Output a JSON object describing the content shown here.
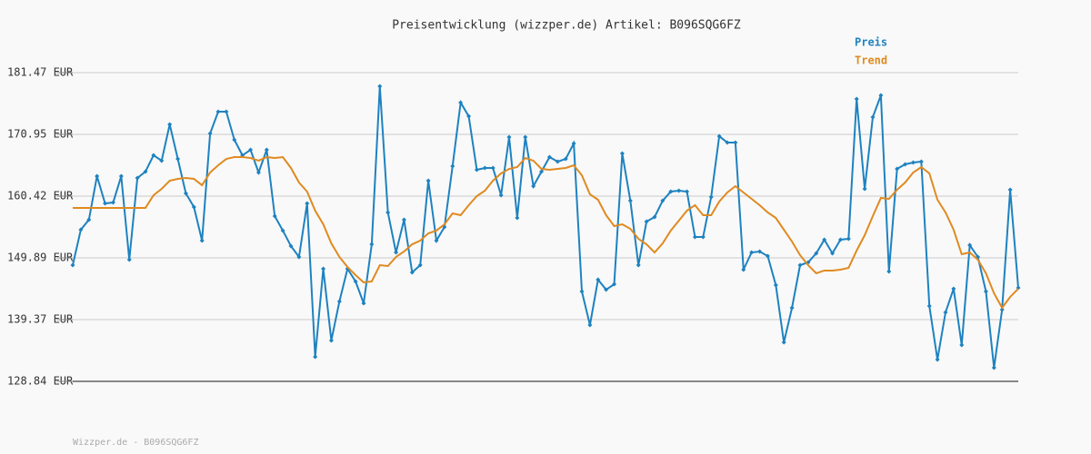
{
  "chart_data": {
    "type": "line",
    "title": "Preisentwicklung (wizzper.de) Artikel: B096SQG6FZ",
    "footer": "Wizzper.de - B096SQG6FZ",
    "ylim": [
      128.84,
      181.47
    ],
    "yticks": [
      {
        "value": 128.84,
        "label": "128.84 EUR"
      },
      {
        "value": 139.37,
        "label": "139.37 EUR"
      },
      {
        "value": 149.89,
        "label": "149.89 EUR"
      },
      {
        "value": 160.42,
        "label": "160.42 EUR"
      },
      {
        "value": 170.95,
        "label": "170.95 EUR"
      },
      {
        "value": 181.47,
        "label": "181.47 EUR"
      }
    ],
    "grid": true,
    "legend": "top-right",
    "series": [
      {
        "name": "Preis",
        "color": "#1e82c0",
        "markers": true,
        "values": [
          148.65,
          154.69,
          156.39,
          163.82,
          159.18,
          159.33,
          163.82,
          149.58,
          163.51,
          164.6,
          167.38,
          166.46,
          172.65,
          166.76,
          160.88,
          158.56,
          152.83,
          171.1,
          174.81,
          174.81,
          170.02,
          167.38,
          168.31,
          164.44,
          168.31,
          157.01,
          154.54,
          151.91,
          150.05,
          159.18,
          133.02,
          148.04,
          135.81,
          142.46,
          148.04,
          145.87,
          142.15,
          152.21,
          179.15,
          157.63,
          150.82,
          156.39,
          147.42,
          148.65,
          163.05,
          152.83,
          155.16,
          165.53,
          176.36,
          174.04,
          164.91,
          165.22,
          165.22,
          160.57,
          170.48,
          156.7,
          170.48,
          162.12,
          164.6,
          167.07,
          166.3,
          166.76,
          169.4,
          144.17,
          138.44,
          146.18,
          144.47,
          145.4,
          167.69,
          159.64,
          148.65,
          156.08,
          156.86,
          159.64,
          161.19,
          161.35,
          161.19,
          153.45,
          153.45,
          160.26,
          170.63,
          169.55,
          169.55,
          147.88,
          150.82,
          150.98,
          150.2,
          145.25,
          135.5,
          141.38,
          148.65,
          149.12,
          150.67,
          152.99,
          150.67,
          152.99,
          153.14,
          176.98,
          161.66,
          173.89,
          177.6,
          147.57,
          165.06,
          165.84,
          166.15,
          166.3,
          141.69,
          132.56,
          140.61,
          144.63,
          135.03,
          152.06,
          150.05,
          144.17,
          131.16,
          141.07,
          161.5,
          144.78
        ]
      },
      {
        "name": "Trend",
        "color": "#e08a20",
        "markers": false,
        "values": [
          158.41,
          158.41,
          158.41,
          158.41,
          158.41,
          158.41,
          158.41,
          158.41,
          158.41,
          158.41,
          160.57,
          161.66,
          163.05,
          163.36,
          163.51,
          163.36,
          162.28,
          164.44,
          165.68,
          166.76,
          167.07,
          167.07,
          166.92,
          166.46,
          167.07,
          166.92,
          167.07,
          165.22,
          162.74,
          161.19,
          157.94,
          155.62,
          152.37,
          150.05,
          148.34,
          146.95,
          145.71,
          145.87,
          148.65,
          148.5,
          150.05,
          150.98,
          152.21,
          152.83,
          154.07,
          154.54,
          155.62,
          157.48,
          157.17,
          158.87,
          160.42,
          161.35,
          163.05,
          164.29,
          165.06,
          165.37,
          166.92,
          166.46,
          165.06,
          164.91,
          165.06,
          165.22,
          165.68,
          163.98,
          160.73,
          159.8,
          157.17,
          155.31,
          155.62,
          154.85,
          153.14,
          152.21,
          150.82,
          152.37,
          154.54,
          156.24,
          157.94,
          158.87,
          157.17,
          157.17,
          159.49,
          161.04,
          162.12,
          161.04,
          159.95,
          158.87,
          157.63,
          156.7,
          154.69,
          152.68,
          150.36,
          148.65,
          147.26,
          147.73,
          147.73,
          147.88,
          148.19,
          151.13,
          153.76,
          157.01,
          160.11,
          159.95,
          161.5,
          162.74,
          164.44,
          165.37,
          164.29,
          159.8,
          157.63,
          154.69,
          150.51,
          150.82,
          149.58,
          147.26,
          143.86,
          141.38,
          143.24,
          144.63
        ]
      }
    ]
  }
}
